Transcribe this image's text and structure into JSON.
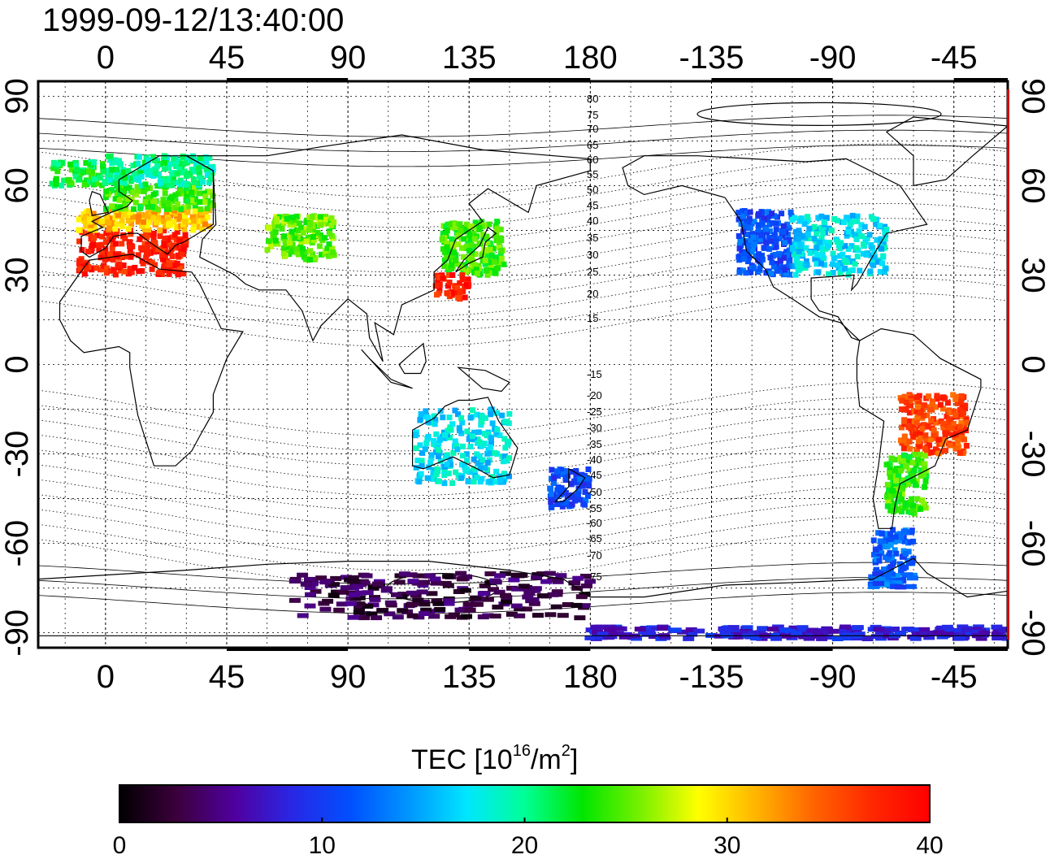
{
  "timestamp": "1999-09-12/13:40:00",
  "axes": {
    "lon_ticks": [
      0,
      45,
      90,
      135,
      180,
      -135,
      -90,
      -45
    ],
    "lat_ticks_left": [
      90,
      60,
      30,
      0,
      -30,
      -60,
      -90
    ],
    "lat_ticks_right": [
      90,
      60,
      30,
      0,
      -30,
      -60,
      -90
    ],
    "lon_range": [
      -25,
      335
    ],
    "lat_range": [
      -95,
      95
    ],
    "grid": true,
    "projection": "cylindrical equidistant"
  },
  "magnetic_contours": {
    "north_labels": [
      "80",
      "75",
      "70",
      "65",
      "60",
      "55",
      "50",
      "45",
      "40",
      "35",
      "30",
      "25",
      "20",
      "15"
    ],
    "south_labels": [
      "-15",
      "-20",
      "-25",
      "-30",
      "-35",
      "-40",
      "-45",
      "-50",
      "-55",
      "-60",
      "-65",
      "-70",
      "-75"
    ]
  },
  "colorbar": {
    "title_main": "TEC  [10",
    "title_exp1": "16",
    "title_mid": "/m",
    "title_exp2": "2",
    "title_end": "]",
    "min": 0,
    "max": 40,
    "ticks": [
      "0",
      "10",
      "20",
      "30",
      "40"
    ],
    "colors": [
      "#000000",
      "#3c003c",
      "#5000a0",
      "#2828e6",
      "#0050ff",
      "#0096ff",
      "#00e6ff",
      "#00ff96",
      "#00e600",
      "#78f000",
      "#ffff00",
      "#ffb400",
      "#ff6400",
      "#ff2800",
      "#ff0000"
    ]
  },
  "chart_data": {
    "type": "scatter",
    "title": "1999-09-12/13:40:00",
    "xlabel": "",
    "ylabel": "",
    "colorbar_label": "TEC [10^16/m^2]",
    "xlim": [
      -25,
      335
    ],
    "ylim": [
      -95,
      95
    ],
    "clim": [
      0,
      40
    ],
    "regions": [
      {
        "lon_min": -10,
        "lon_max": 30,
        "lat_min": 30,
        "lat_max": 45,
        "tec": 38
      },
      {
        "lon_min": -10,
        "lon_max": 40,
        "lat_min": 45,
        "lat_max": 52,
        "tec": 31
      },
      {
        "lon_min": 0,
        "lon_max": 40,
        "lat_min": 52,
        "lat_max": 60,
        "tec": 24
      },
      {
        "lon_min": 0,
        "lon_max": 40,
        "lat_min": 60,
        "lat_max": 70,
        "tec": 20
      },
      {
        "lon_min": -20,
        "lon_max": 0,
        "lat_min": 60,
        "lat_max": 68,
        "tec": 22
      },
      {
        "lon_min": 60,
        "lon_max": 85,
        "lat_min": 35,
        "lat_max": 50,
        "tec": 25
      },
      {
        "lon_min": 125,
        "lon_max": 148,
        "lat_min": 30,
        "lat_max": 48,
        "tec": 24
      },
      {
        "lon_min": 122,
        "lon_max": 135,
        "lat_min": 22,
        "lat_max": 30,
        "tec": 38
      },
      {
        "lon_min": 115,
        "lon_max": 150,
        "lat_min": -40,
        "lat_max": -15,
        "tec": 17
      },
      {
        "lon_min": 165,
        "lon_max": 180,
        "lat_min": -48,
        "lat_max": -35,
        "tec": 11
      },
      {
        "lon_min": 235,
        "lon_max": 255,
        "lat_min": 30,
        "lat_max": 52,
        "tec": 11
      },
      {
        "lon_min": 255,
        "lon_max": 290,
        "lat_min": 30,
        "lat_max": 50,
        "tec": 17
      },
      {
        "lon_min": 295,
        "lon_max": 320,
        "lat_min": -30,
        "lat_max": -10,
        "tec": 36
      },
      {
        "lon_min": 290,
        "lon_max": 305,
        "lat_min": -50,
        "lat_max": -30,
        "tec": 24
      },
      {
        "lon_min": 285,
        "lon_max": 300,
        "lat_min": -75,
        "lat_max": -55,
        "tec": 12
      },
      {
        "lon_min": 70,
        "lon_max": 180,
        "lat_min": -85,
        "lat_max": -70,
        "tec": 3
      },
      {
        "lon_min": 180,
        "lon_max": 335,
        "lat_min": -92,
        "lat_max": -88,
        "tec": 8
      }
    ]
  }
}
